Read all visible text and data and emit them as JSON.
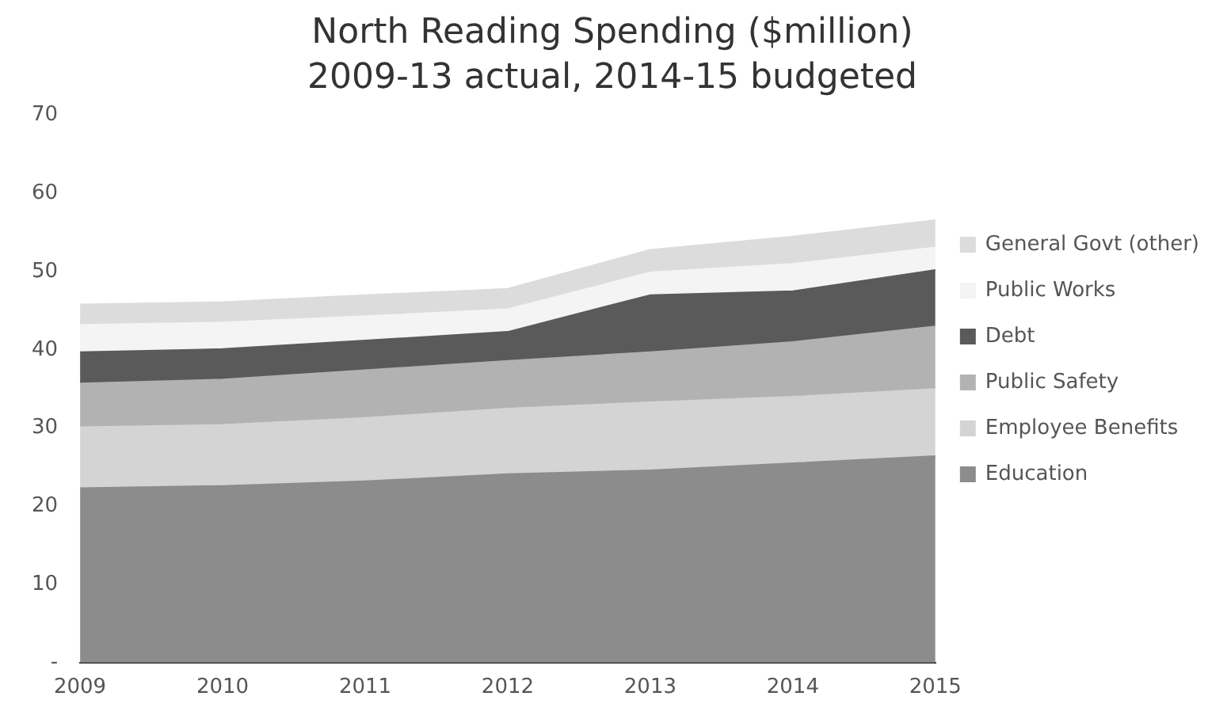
{
  "chart_data": {
    "type": "area",
    "title": "North Reading Spending ($million)",
    "subtitle": "2009-13 actual, 2014-15 budgeted",
    "categories": [
      "2009",
      "2010",
      "2011",
      "2012",
      "2013",
      "2014",
      "2015"
    ],
    "stacked": true,
    "series": [
      {
        "name": "Education",
        "color": "#8c8c8c",
        "values": [
          22.3,
          22.6,
          23.2,
          24.1,
          24.6,
          25.5,
          26.4
        ]
      },
      {
        "name": "Employee Benefits",
        "color": "#d4d4d4",
        "values": [
          7.8,
          7.8,
          8.1,
          8.4,
          8.7,
          8.5,
          8.6
        ]
      },
      {
        "name": "Public Safety",
        "color": "#b2b2b2",
        "values": [
          5.6,
          5.8,
          6.1,
          6.1,
          6.4,
          7.0,
          8.0
        ]
      },
      {
        "name": "Debt",
        "color": "#5a5a5a",
        "values": [
          4.0,
          3.9,
          3.8,
          3.7,
          7.3,
          6.5,
          7.2
        ]
      },
      {
        "name": "Public Works",
        "color": "#f4f4f4",
        "values": [
          3.5,
          3.4,
          3.1,
          2.9,
          2.9,
          3.5,
          2.9
        ]
      },
      {
        "name": "General Govt (other)",
        "color": "#dcdcdc",
        "values": [
          2.6,
          2.6,
          2.7,
          2.6,
          2.9,
          3.5,
          3.5
        ]
      }
    ],
    "ylim": [
      0,
      70
    ],
    "yticks": [
      {
        "value": 0,
        "label": "-"
      },
      10,
      20,
      30,
      40,
      50,
      60,
      70
    ],
    "grid": false,
    "legend": "right"
  }
}
